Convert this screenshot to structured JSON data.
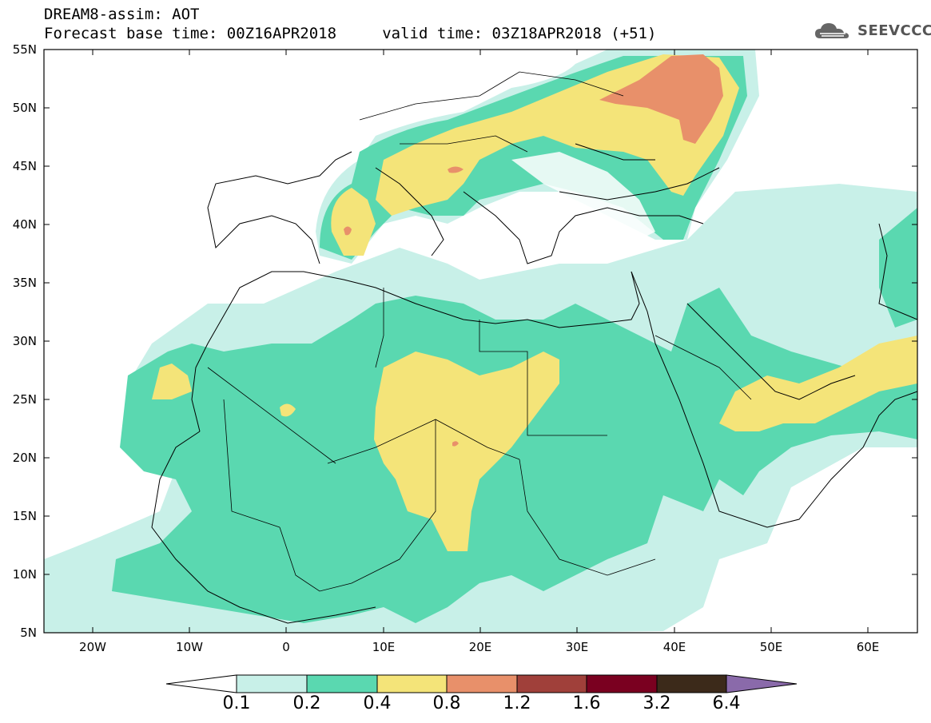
{
  "header": {
    "title_line1": "DREAM8-assim: AOT",
    "title_line2": "Forecast base time: 00Z16APR2018     valid time: 03Z18APR2018 (+51)",
    "logo_text": "SEEVCCC"
  },
  "map": {
    "lat_labels": [
      "55N",
      "50N",
      "45N",
      "40N",
      "35N",
      "30N",
      "25N",
      "20N",
      "15N",
      "10N",
      "5N"
    ],
    "lon_labels": [
      "20W",
      "10W",
      "0",
      "10E",
      "20E",
      "30E",
      "40E",
      "50E",
      "60E"
    ]
  },
  "colorbar": {
    "labels": [
      "0.1",
      "0.2",
      "0.4",
      "0.8",
      "1.2",
      "1.6",
      "3.2",
      "6.4"
    ],
    "colors": [
      "#ffffff",
      "#c8f0e8",
      "#5ad8b0",
      "#f4e479",
      "#e8906a",
      "#a0403a",
      "#7a0020",
      "#3c2a1a",
      "#8a6aaa"
    ]
  },
  "colors": {
    "c01": "#c8f0e8",
    "c02": "#5ad8b0",
    "c04": "#f4e479",
    "c08": "#e8906a",
    "border": "#000000"
  }
}
